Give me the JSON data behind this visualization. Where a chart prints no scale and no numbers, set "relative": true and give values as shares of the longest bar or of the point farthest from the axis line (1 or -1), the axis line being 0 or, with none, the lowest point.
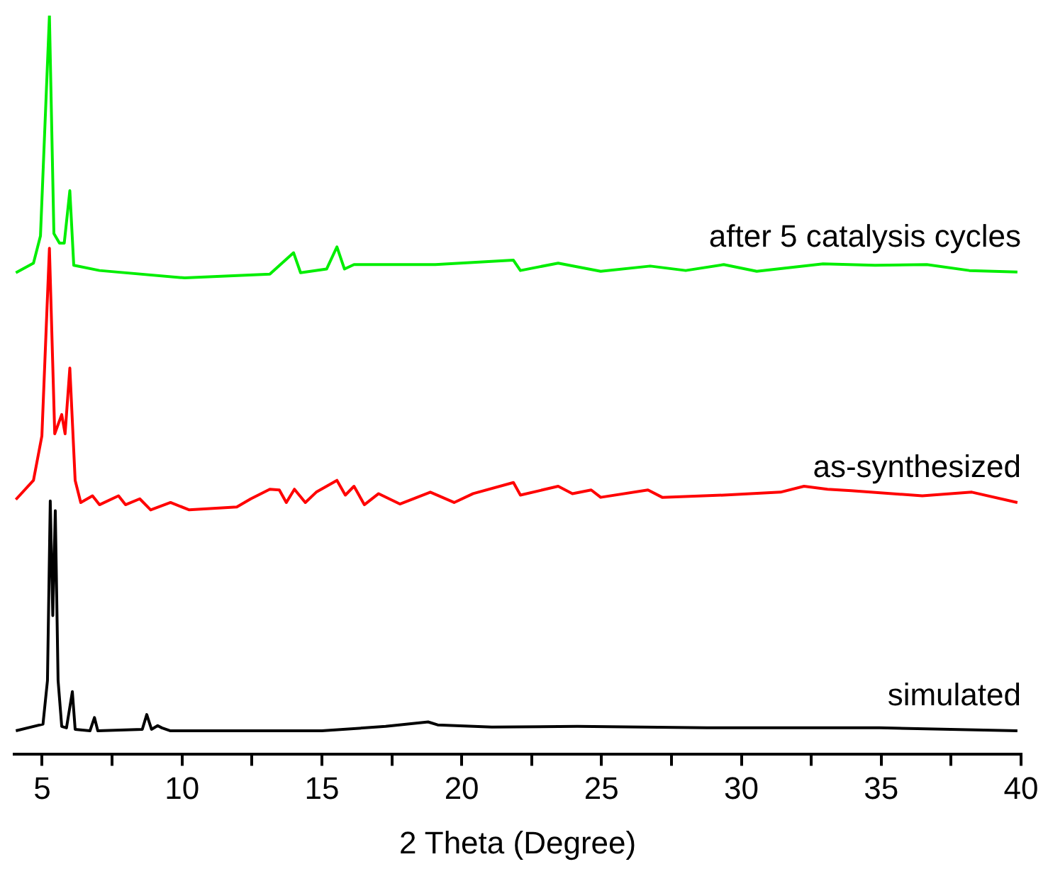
{
  "chart_data": {
    "type": "line",
    "xlabel": "2 Theta (Degree)",
    "relative": true,
    "xlim": [
      4,
      40
    ],
    "xticks": [
      5,
      {
        "value": 7.5,
        "label": null
      },
      10,
      {
        "value": 12.5,
        "label": null
      },
      15,
      {
        "value": 17.5,
        "label": null
      },
      20,
      {
        "value": 22.5,
        "label": null
      },
      25,
      {
        "value": 27.5,
        "label": null
      },
      30,
      {
        "value": 32.5,
        "label": null
      },
      35,
      {
        "value": 37.5,
        "label": null
      },
      40
    ],
    "grid": false,
    "legend": false,
    "marker": "none",
    "series": [
      {
        "name": "after 5 catalysis cycles",
        "color": "#00ee00",
        "x": [
          4.06,
          4.69,
          4.94,
          5.26,
          5.42,
          5.62,
          5.79,
          5.99,
          6.13,
          7.05,
          10.1,
          13.14,
          13.99,
          14.24,
          15.17,
          15.54,
          15.81,
          16.15,
          19.06,
          21.85,
          22.1,
          23.45,
          24.97,
          26.74,
          28.01,
          29.37,
          30.55,
          32.92,
          34.78,
          36.63,
          38.15,
          39.87
        ],
        "values": [
          0.652,
          0.665,
          0.702,
          1.0,
          0.705,
          0.692,
          0.692,
          0.763,
          0.662,
          0.655,
          0.645,
          0.65,
          0.679,
          0.652,
          0.657,
          0.687,
          0.657,
          0.663,
          0.663,
          0.669,
          0.655,
          0.665,
          0.654,
          0.661,
          0.655,
          0.663,
          0.654,
          0.664,
          0.662,
          0.663,
          0.655,
          0.653
        ]
      },
      {
        "name": "as-synthesized",
        "color": "#ff0000",
        "x": [
          4.06,
          4.69,
          4.99,
          5.26,
          5.45,
          5.7,
          5.82,
          5.99,
          6.18,
          6.38,
          6.8,
          7.05,
          7.73,
          7.98,
          8.49,
          8.88,
          9.59,
          10.26,
          11.96,
          12.46,
          13.14,
          13.48,
          13.73,
          14.02,
          14.41,
          14.8,
          15.54,
          15.84,
          16.15,
          16.52,
          17.03,
          17.79,
          18.88,
          19.73,
          20.41,
          21.85,
          22.1,
          23.45,
          23.96,
          24.63,
          24.97,
          26.66,
          27.17,
          29.37,
          31.4,
          32.24,
          33.08,
          33.93,
          36.47,
          38.24,
          39.87
        ],
        "values": [
          0.345,
          0.371,
          0.431,
          0.685,
          0.434,
          0.46,
          0.434,
          0.523,
          0.371,
          0.341,
          0.35,
          0.338,
          0.35,
          0.338,
          0.346,
          0.331,
          0.341,
          0.331,
          0.335,
          0.346,
          0.359,
          0.358,
          0.341,
          0.359,
          0.341,
          0.355,
          0.371,
          0.351,
          0.363,
          0.338,
          0.353,
          0.339,
          0.355,
          0.341,
          0.353,
          0.368,
          0.351,
          0.363,
          0.353,
          0.358,
          0.348,
          0.358,
          0.348,
          0.351,
          0.355,
          0.363,
          0.359,
          0.357,
          0.35,
          0.355,
          0.341
        ]
      },
      {
        "name": "simulated",
        "color": "#000000",
        "x": [
          4.06,
          5.03,
          5.19,
          5.29,
          5.38,
          5.47,
          5.57,
          5.7,
          5.87,
          6.08,
          6.18,
          6.71,
          6.87,
          6.99,
          8.58,
          8.74,
          8.91,
          9.13,
          9.28,
          9.59,
          15.0,
          17.28,
          18.8,
          19.14,
          21.08,
          24.13,
          28.77,
          34.94,
          39.87
        ],
        "values": [
          0.032,
          0.041,
          0.1,
          0.343,
          0.188,
          0.33,
          0.1,
          0.038,
          0.036,
          0.085,
          0.034,
          0.032,
          0.05,
          0.032,
          0.034,
          0.054,
          0.034,
          0.039,
          0.036,
          0.032,
          0.032,
          0.038,
          0.044,
          0.04,
          0.037,
          0.038,
          0.036,
          0.036,
          0.032
        ]
      }
    ]
  }
}
